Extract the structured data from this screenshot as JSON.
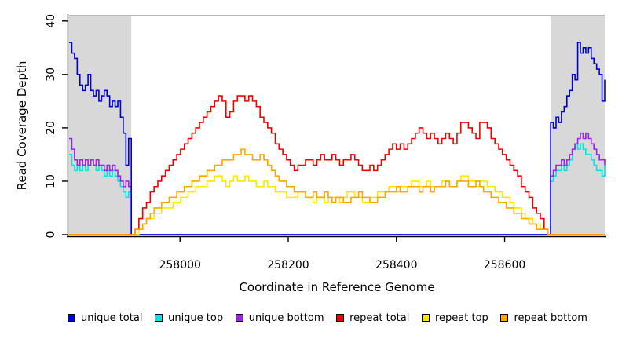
{
  "chart_data": {
    "type": "line",
    "step": true,
    "title": "",
    "xlabel": "Coordinate in Reference Genome",
    "ylabel": "Read Coverage Depth",
    "xlim": [
      257795,
      258785
    ],
    "ylim": [
      0,
      41
    ],
    "xticks": [
      258000,
      258200,
      258400,
      258600
    ],
    "yticks": [
      0,
      10,
      20,
      30,
      40
    ],
    "grid": false,
    "legend_position": "bottom",
    "shade_color": "#D8D8D8",
    "top_border_color": "#8C8C8C",
    "axis_color": "#000000",
    "shaded_regions": [
      {
        "x_start": 257795,
        "x_end": 257910
      },
      {
        "x_start": 258685,
        "x_end": 258785
      }
    ],
    "draw_order": [
      "unique_top",
      "unique_bottom",
      "unique_total",
      "repeat_top",
      "repeat_total",
      "repeat_bottom"
    ],
    "series": [
      {
        "id": "unique_total",
        "label": "unique total",
        "color": "#0000DC",
        "segments": [
          {
            "x0": 257795,
            "dx": 5,
            "values": [
              36,
              34,
              33,
              30,
              28,
              27,
              28,
              30,
              27,
              26,
              27,
              25,
              26,
              27,
              26,
              24,
              25,
              24,
              25,
              22,
              19,
              13,
              18
            ]
          },
          {
            "x0": 257910,
            "dx": 775,
            "values": [
              0,
              0
            ]
          },
          {
            "x0": 258685,
            "dx": 5,
            "values": [
              21,
              20,
              22,
              21,
              23,
              24,
              26,
              27,
              30,
              29,
              36,
              34,
              35,
              34,
              35,
              33,
              32,
              31,
              30,
              25,
              29
            ]
          }
        ]
      },
      {
        "id": "unique_top",
        "label": "unique top",
        "color": "#00E5E5",
        "segments": [
          {
            "x0": 257795,
            "dx": 5,
            "values": [
              15,
              13,
              12,
              13,
              12,
              13,
              12,
              13,
              14,
              13,
              12,
              13,
              12,
              11,
              12,
              11,
              12,
              11,
              10,
              9,
              8,
              7,
              8
            ]
          },
          {
            "x0": 257910,
            "dx": 775,
            "values": [
              0,
              0
            ]
          },
          {
            "x0": 258685,
            "dx": 5,
            "values": [
              10,
              11,
              12,
              12,
              13,
              12,
              13,
              14,
              16,
              17,
              16,
              17,
              16,
              15,
              15,
              14,
              13,
              12,
              12,
              11,
              13
            ]
          }
        ]
      },
      {
        "id": "unique_bottom",
        "label": "unique bottom",
        "color": "#A020F0",
        "segments": [
          {
            "x0": 257795,
            "dx": 5,
            "values": [
              18,
              16,
              14,
              13,
              14,
              13,
              14,
              13,
              14,
              13,
              14,
              13,
              13,
              12,
              13,
              12,
              13,
              12,
              11,
              10,
              9,
              10,
              9
            ]
          },
          {
            "x0": 257910,
            "dx": 775,
            "values": [
              0,
              0
            ]
          },
          {
            "x0": 258685,
            "dx": 5,
            "values": [
              11,
              12,
              13,
              13,
              14,
              13,
              14,
              15,
              16,
              17,
              18,
              19,
              18,
              19,
              18,
              17,
              16,
              15,
              14,
              14,
              13
            ]
          }
        ]
      },
      {
        "id": "repeat_total",
        "label": "repeat total",
        "color": "#F50000",
        "segments": [
          {
            "x0": 257795,
            "dx": 115,
            "values": [
              0,
              0
            ]
          },
          {
            "x0": 257910,
            "dx": 7,
            "values": [
              0,
              1,
              3,
              5,
              6,
              8,
              9,
              10,
              11,
              12,
              13,
              14,
              15,
              16,
              17,
              18,
              19,
              20,
              21,
              22,
              23,
              24,
              25,
              26,
              25,
              22,
              23,
              25,
              26,
              26,
              25,
              26,
              25,
              24,
              22,
              21,
              20,
              19,
              17,
              16,
              15,
              14,
              13,
              12,
              13,
              13,
              14,
              14,
              13,
              14,
              15,
              14,
              14,
              15,
              14,
              13,
              14,
              14,
              15,
              14,
              13,
              12,
              12,
              13,
              12,
              13,
              14,
              15,
              16,
              17,
              16,
              17,
              16,
              17,
              18,
              19,
              20,
              19,
              18,
              19,
              18,
              17,
              18,
              19,
              18,
              17,
              19,
              21,
              21,
              20,
              19,
              18,
              21,
              21,
              20,
              18,
              17,
              16,
              15,
              14,
              13,
              12,
              11,
              9,
              8,
              7,
              5,
              4,
              3,
              1,
              0
            ]
          },
          {
            "x0": 258680,
            "dx": 105,
            "values": [
              0,
              0
            ]
          }
        ]
      },
      {
        "id": "repeat_top",
        "label": "repeat top",
        "color": "#FFE800",
        "segments": [
          {
            "x0": 257795,
            "dx": 115,
            "values": [
              0,
              0
            ]
          },
          {
            "x0": 257910,
            "dx": 7,
            "values": [
              0,
              0,
              1,
              2,
              3,
              3,
              4,
              4,
              5,
              5,
              5,
              6,
              6,
              7,
              7,
              8,
              8,
              9,
              9,
              9,
              10,
              10,
              11,
              11,
              10,
              9,
              10,
              11,
              10,
              10,
              11,
              10,
              10,
              9,
              9,
              10,
              9,
              9,
              8,
              8,
              8,
              7,
              7,
              7,
              8,
              8,
              7,
              7,
              6,
              7,
              7,
              6,
              7,
              7,
              7,
              6,
              7,
              8,
              8,
              7,
              7,
              6,
              6,
              7,
              7,
              8,
              8,
              8,
              9,
              9,
              8,
              9,
              9,
              9,
              10,
              10,
              9,
              9,
              10,
              9,
              9,
              9,
              10,
              10,
              9,
              9,
              10,
              11,
              11,
              10,
              10,
              9,
              10,
              10,
              9,
              9,
              8,
              8,
              7,
              7,
              6,
              5,
              5,
              4,
              3,
              3,
              2,
              2,
              1,
              1,
              0
            ]
          },
          {
            "x0": 258680,
            "dx": 105,
            "values": [
              0,
              0
            ]
          }
        ]
      },
      {
        "id": "repeat_bottom",
        "label": "repeat bottom",
        "color": "#FFA500",
        "segments": [
          {
            "x0": 257795,
            "dx": 115,
            "values": [
              0,
              0
            ]
          },
          {
            "x0": 257910,
            "dx": 7,
            "values": [
              0,
              1,
              1,
              2,
              3,
              4,
              5,
              5,
              6,
              6,
              7,
              7,
              8,
              8,
              9,
              9,
              10,
              10,
              11,
              11,
              12,
              12,
              13,
              13,
              14,
              14,
              14,
              15,
              15,
              16,
              15,
              15,
              14,
              14,
              15,
              14,
              13,
              12,
              11,
              10,
              10,
              9,
              9,
              8,
              8,
              8,
              7,
              7,
              8,
              7,
              7,
              8,
              7,
              6,
              7,
              7,
              6,
              6,
              7,
              7,
              8,
              7,
              7,
              6,
              6,
              7,
              7,
              8,
              8,
              8,
              9,
              8,
              8,
              9,
              9,
              9,
              8,
              9,
              9,
              8,
              9,
              9,
              9,
              10,
              9,
              9,
              10,
              10,
              10,
              9,
              9,
              10,
              9,
              8,
              8,
              7,
              7,
              6,
              6,
              5,
              5,
              4,
              4,
              3,
              3,
              2,
              2,
              1,
              1,
              1,
              0
            ]
          },
          {
            "x0": 258680,
            "dx": 105,
            "values": [
              0,
              0
            ]
          }
        ]
      }
    ]
  }
}
